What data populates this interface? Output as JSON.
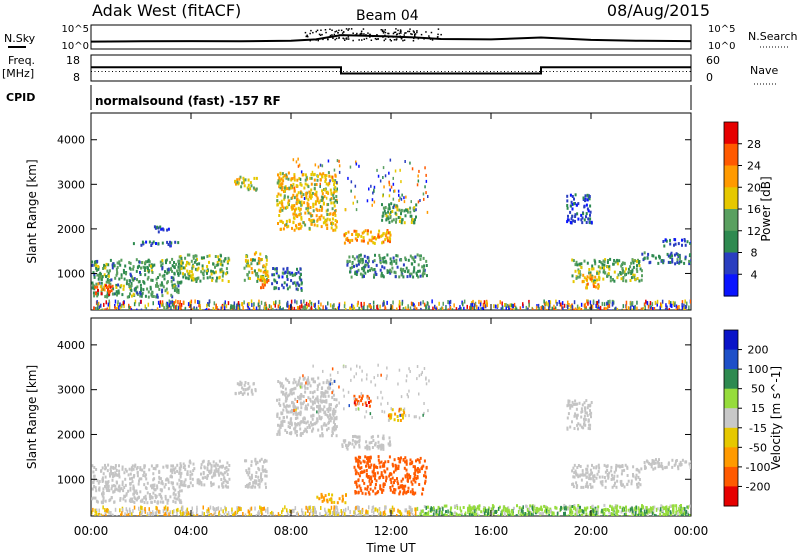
{
  "header": {
    "station": "Adak West (fitACF)",
    "beam": "Beam 04",
    "date": "08/Aug/2015"
  },
  "panel_labels": {
    "nsky": "N.Sky",
    "nsearch": "N.Search",
    "nsky_ticks": [
      "10^5",
      "10^0"
    ],
    "freq_line1": "Freq.",
    "freq_line2": "[MHz]",
    "freq_ticks": [
      "18",
      "8"
    ],
    "nave": "Nave",
    "nave_ticks": [
      "60",
      "0"
    ],
    "cpid": "CPID",
    "cpid_text": "normalsound (fast) -157 RF"
  },
  "colors": {
    "power": [
      "#0a14ff",
      "#2a3ec0",
      "#2e8a50",
      "#5aa060",
      "#e6c800",
      "#ff9a00",
      "#ff5a00",
      "#e60000"
    ],
    "velocity": [
      "#e60000",
      "#ff5a00",
      "#ff9a00",
      "#e6c800",
      "#c8c8c8",
      "#96dc3c",
      "#2e8a50",
      "#1e50c8",
      "#0a14c8"
    ],
    "ground": "#c4c4c4"
  },
  "chart_data": [
    {
      "type": "line",
      "title": "Adak West (fitACF)",
      "ylabel": "N.Sky / N.Search",
      "ylim": [
        1,
        100000
      ],
      "yscale": "log",
      "xlim": [
        "00:00",
        "24:00"
      ],
      "series": [
        {
          "name": "N.Sky",
          "x": [
            "00:00",
            "02:00",
            "04:00",
            "06:00",
            "08:00",
            "09:00",
            "10:00",
            "11:00",
            "12:00",
            "13:00",
            "14:00",
            "16:00",
            "18:00",
            "20:00",
            "22:00",
            "24:00"
          ],
          "values": [
            35,
            40,
            45,
            40,
            50,
            100,
            800,
            600,
            400,
            250,
            120,
            100,
            250,
            80,
            50,
            45
          ]
        }
      ]
    },
    {
      "type": "line",
      "ylabel": "Freq. [MHz]",
      "ylim": [
        8,
        18
      ],
      "x": [
        "00:00",
        "10:00",
        "10:00",
        "18:00",
        "18:00",
        "24:00"
      ],
      "series": [
        {
          "name": "Freq.",
          "values": [
            13.3,
            13.3,
            10.9,
            10.9,
            13.3,
            13.3
          ]
        },
        {
          "name": "Nave",
          "values": [
            22,
            22,
            22,
            22,
            22,
            22
          ]
        }
      ]
    },
    {
      "type": "heatmap",
      "xlabel": "",
      "ylabel": "Slant Range [km]",
      "xlim": [
        0,
        24
      ],
      "ylim": [
        180,
        4600
      ],
      "x_ticks": [
        "00:00",
        "04:00",
        "08:00",
        "12:00",
        "16:00",
        "20:00",
        "00:00"
      ],
      "y_ticks": [
        1000,
        2000,
        3000,
        4000
      ],
      "colorbar": {
        "label": "Power [dB]",
        "ticks": [
          4,
          8,
          12,
          16,
          20,
          24,
          28
        ],
        "range": [
          0,
          32
        ]
      },
      "regions": [
        {
          "t": [
            0.0,
            3.6
          ],
          "r": [
            500,
            1350
          ],
          "v": 12
        },
        {
          "t": [
            0.1,
            0.9
          ],
          "r": [
            550,
            800
          ],
          "v": 25
        },
        {
          "t": [
            3.5,
            5.5
          ],
          "r": [
            850,
            1450
          ],
          "v": 14
        },
        {
          "t": [
            1.5,
            3.5
          ],
          "r": [
            1650,
            1750
          ],
          "v": 7
        },
        {
          "t": [
            2.5,
            3.2
          ],
          "r": [
            1950,
            2100
          ],
          "v": 7
        },
        {
          "t": [
            5.7,
            6.6
          ],
          "r": [
            2900,
            3200
          ],
          "v": 17
        },
        {
          "t": [
            6.1,
            7.0
          ],
          "r": [
            850,
            1500
          ],
          "v": 16
        },
        {
          "t": [
            6.7,
            7.1
          ],
          "r": [
            700,
            1100
          ],
          "v": 22
        },
        {
          "t": [
            7.2,
            8.4
          ],
          "r": [
            650,
            1150
          ],
          "v": 8
        },
        {
          "t": [
            7.4,
            9.8
          ],
          "r": [
            2000,
            3300
          ],
          "v": 19
        },
        {
          "t": [
            10.0,
            12.0
          ],
          "r": [
            1700,
            2000
          ],
          "v": 21
        },
        {
          "t": [
            11.6,
            13.0
          ],
          "r": [
            2150,
            2600
          ],
          "v": 13
        },
        {
          "t": [
            10.2,
            13.4
          ],
          "r": [
            950,
            1450
          ],
          "v": 11
        },
        {
          "t": [
            19.2,
            22.0
          ],
          "r": [
            850,
            1350
          ],
          "v": 14
        },
        {
          "t": [
            22.0,
            24.0
          ],
          "r": [
            1250,
            1500
          ],
          "v": 9
        },
        {
          "t": [
            19.6,
            20.3
          ],
          "r": [
            700,
            1000
          ],
          "v": 22
        },
        {
          "t": [
            19.0,
            20.0
          ],
          "r": [
            2150,
            2800
          ],
          "v": 6
        },
        {
          "t": [
            22.8,
            24.0
          ],
          "r": [
            1650,
            1800
          ],
          "v": 6
        }
      ]
    },
    {
      "type": "heatmap",
      "xlabel": "Time UT",
      "ylabel": "Slant Range [km]",
      "xlim": [
        0,
        24
      ],
      "ylim": [
        180,
        4600
      ],
      "x_ticks": [
        "00:00",
        "04:00",
        "08:00",
        "12:00",
        "16:00",
        "20:00",
        "00:00"
      ],
      "y_ticks": [
        1000,
        2000,
        3000,
        4000
      ],
      "colorbar": {
        "label": "Velocity [m s^-1]",
        "ticks": [
          "200",
          "100",
          "50",
          "15",
          "-15",
          "-50",
          "-100",
          "-200"
        ],
        "range": [
          -250,
          250
        ]
      },
      "regions": [
        {
          "t": [
            0.0,
            3.6
          ],
          "r": [
            500,
            1350
          ],
          "v": 0
        },
        {
          "t": [
            3.5,
            5.5
          ],
          "r": [
            850,
            1450
          ],
          "v": 0
        },
        {
          "t": [
            6.1,
            7.0
          ],
          "r": [
            850,
            1500
          ],
          "v": 0
        },
        {
          "t": [
            5.7,
            6.6
          ],
          "r": [
            2900,
            3200
          ],
          "v": 0
        },
        {
          "t": [
            7.4,
            9.8
          ],
          "r": [
            2000,
            3300
          ],
          "v": 0
        },
        {
          "t": [
            10.0,
            12.0
          ],
          "r": [
            1700,
            2000
          ],
          "v": 0
        },
        {
          "t": [
            9.0,
            10.2
          ],
          "r": [
            500,
            700
          ],
          "v": -60
        },
        {
          "t": [
            10.5,
            13.4
          ],
          "r": [
            700,
            1550
          ],
          "v": -140
        },
        {
          "t": [
            11.8,
            12.5
          ],
          "r": [
            2300,
            2600
          ],
          "v": -40
        },
        {
          "t": [
            10.4,
            11.2
          ],
          "r": [
            2650,
            2900
          ],
          "v": -180
        },
        {
          "t": [
            19.2,
            22.0
          ],
          "r": [
            850,
            1350
          ],
          "v": 0
        },
        {
          "t": [
            22.0,
            24.0
          ],
          "r": [
            1250,
            1500
          ],
          "v": 0
        },
        {
          "t": [
            19.0,
            20.0
          ],
          "r": [
            2150,
            2800
          ],
          "v": 0
        },
        {
          "t": [
            13.0,
            24.0
          ],
          "r": [
            200,
            450
          ],
          "v": 25
        }
      ]
    }
  ]
}
